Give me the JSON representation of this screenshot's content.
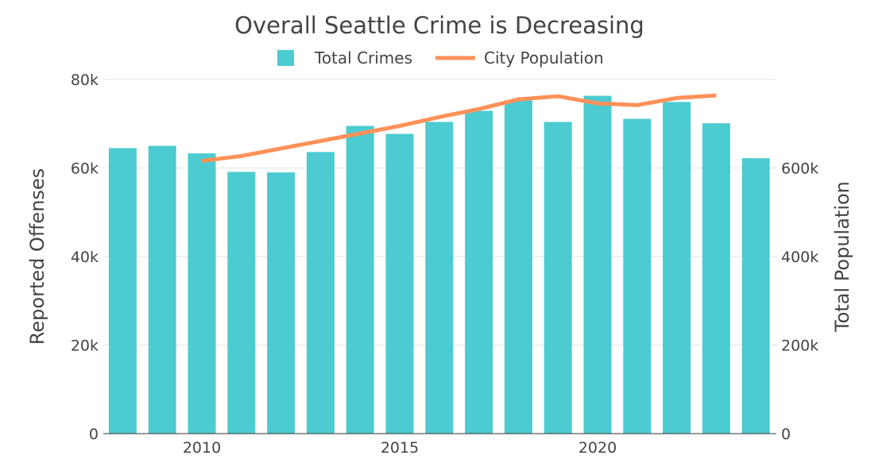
{
  "chart_data": {
    "type": "bar",
    "title": "Overall Seattle Crime is Decreasing",
    "legend_position": "top",
    "grid": true,
    "categories": [
      2008,
      2009,
      2010,
      2011,
      2012,
      2013,
      2014,
      2015,
      2016,
      2017,
      2018,
      2019,
      2020,
      2021,
      2022,
      2023,
      2024
    ],
    "x_ticks": [
      "2010",
      "2015",
      "2020"
    ],
    "x_tick_values": [
      2010,
      2015,
      2020
    ],
    "ylabel": "Reported Offenses",
    "ylim": [
      0,
      80000
    ],
    "y_ticks": [
      "0",
      "20k",
      "40k",
      "60k",
      "80k"
    ],
    "y_tick_values": [
      0,
      20000,
      40000,
      60000,
      80000
    ],
    "y2label": "Total Population",
    "y2lim": [
      0,
      800000
    ],
    "y2_ticks": [
      "0",
      "200k",
      "400k",
      "600k"
    ],
    "y2_tick_values": [
      0,
      200000,
      400000,
      600000
    ],
    "series": [
      {
        "name": "Total Crimes",
        "type": "bar",
        "axis": "left",
        "color": "#4ccbd1",
        "x": [
          2008,
          2009,
          2010,
          2011,
          2012,
          2013,
          2014,
          2015,
          2016,
          2017,
          2018,
          2019,
          2020,
          2021,
          2022,
          2023,
          2024
        ],
        "values": [
          64500,
          65000,
          63300,
          59100,
          59000,
          63600,
          69500,
          67700,
          70400,
          72900,
          75300,
          70400,
          76300,
          71100,
          74900,
          70100,
          62200
        ]
      },
      {
        "name": "City Population",
        "type": "line",
        "axis": "right",
        "color": "#ff9158",
        "x": [
          2010,
          2011,
          2012,
          2013,
          2014,
          2015,
          2016,
          2017,
          2018,
          2019,
          2020,
          2021,
          2022,
          2023
        ],
        "values": [
          616000,
          627000,
          644000,
          661000,
          678000,
          695000,
          715000,
          733000,
          755000,
          762000,
          746000,
          742000,
          758000,
          764000
        ]
      }
    ]
  }
}
